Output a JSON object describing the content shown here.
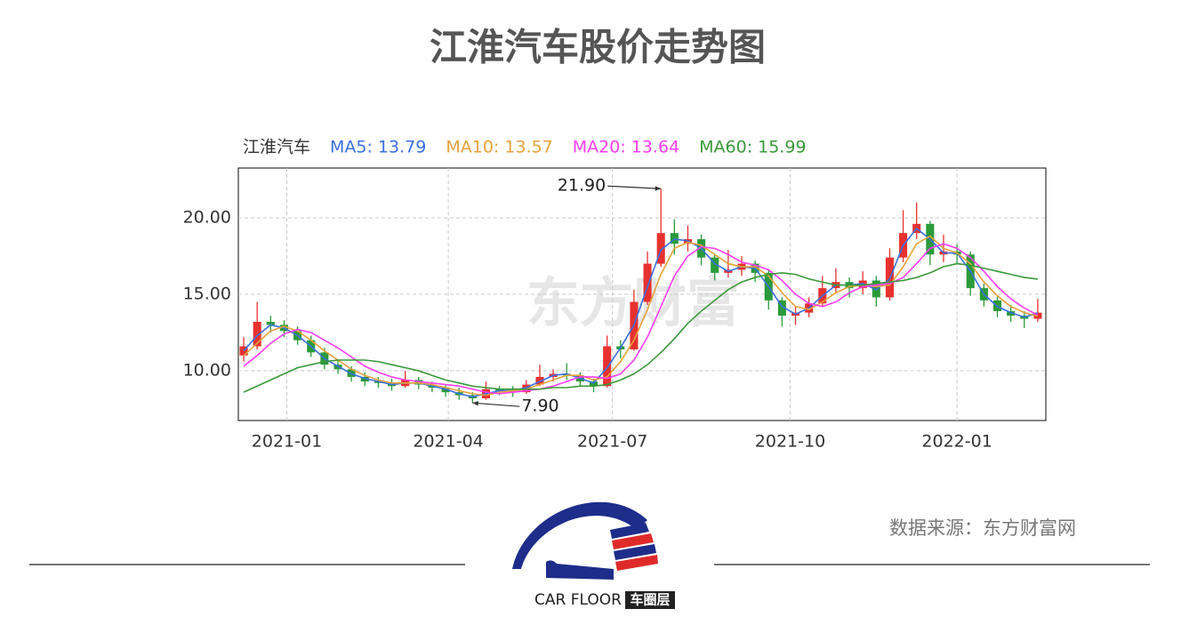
{
  "title": "江淮汽车股价走势图",
  "source": "数据来源：东方财富网",
  "logo": {
    "text": "CAR FLOOR",
    "cn": "车圈层"
  },
  "chart_data": {
    "type": "candlestick",
    "legend_title": "江淮汽车",
    "watermark": "东方财富",
    "xlim": [
      0,
      300
    ],
    "xticks": [
      {
        "value": 18,
        "label": "2021-01"
      },
      {
        "value": 78,
        "label": "2021-04"
      },
      {
        "value": 139,
        "label": "2021-07"
      },
      {
        "value": 205,
        "label": "2021-10"
      },
      {
        "value": 267,
        "label": "2022-01"
      }
    ],
    "ylim": [
      6.75,
      23.25
    ],
    "yticks": [
      {
        "value": 10,
        "label": "10.00"
      },
      {
        "value": 15,
        "label": "15.00"
      },
      {
        "value": 20,
        "label": "20.00"
      }
    ],
    "grid": true,
    "up_color": "#e8312f",
    "down_color": "#2a9a3a",
    "x": [
      2,
      7,
      12,
      17,
      22,
      27,
      32,
      37,
      42,
      47,
      52,
      57,
      62,
      67,
      72,
      77,
      82,
      87,
      92,
      97,
      102,
      107,
      112,
      117,
      122,
      127,
      132,
      137,
      142,
      147,
      152,
      157,
      162,
      167,
      172,
      177,
      182,
      187,
      192,
      197,
      202,
      207,
      212,
      217,
      222,
      227,
      232,
      237,
      242,
      247,
      252,
      257,
      262,
      267,
      272,
      277,
      282,
      287,
      292,
      297
    ],
    "open": [
      11.0,
      11.6,
      13.2,
      13.0,
      12.6,
      12.0,
      11.2,
      10.4,
      10.1,
      9.6,
      9.3,
      9.2,
      9.0,
      9.4,
      9.1,
      8.9,
      8.6,
      8.4,
      8.2,
      8.8,
      8.7,
      8.6,
      9.1,
      9.6,
      9.8,
      9.7,
      9.3,
      9.0,
      11.6,
      11.4,
      14.5,
      17.0,
      19.0,
      18.3,
      18.6,
      17.4,
      16.4,
      16.6,
      17.0,
      16.4,
      14.6,
      13.6,
      13.8,
      14.4,
      15.4,
      15.8,
      15.4,
      15.9,
      14.8,
      17.4,
      19.0,
      19.6,
      17.6,
      17.8,
      17.6,
      15.4,
      14.6,
      13.9,
      13.6,
      13.4
    ],
    "high": [
      12.2,
      14.5,
      13.6,
      13.3,
      12.9,
      12.3,
      11.5,
      10.7,
      10.3,
      9.9,
      9.6,
      9.5,
      10.0,
      9.6,
      9.3,
      9.1,
      8.9,
      8.6,
      9.3,
      9.0,
      9.0,
      9.4,
      10.4,
      10.1,
      10.5,
      9.9,
      9.5,
      12.3,
      12.0,
      15.3,
      17.8,
      21.9,
      19.9,
      19.5,
      18.9,
      17.6,
      17.9,
      17.5,
      17.2,
      16.6,
      14.8,
      14.2,
      14.8,
      16.2,
      16.7,
      16.1,
      16.5,
      16.2,
      18.0,
      20.5,
      21.0,
      19.8,
      18.9,
      18.3,
      17.8,
      15.7,
      14.9,
      14.3,
      13.9,
      14.7
    ],
    "low": [
      10.6,
      11.4,
      12.5,
      12.2,
      11.7,
      10.9,
      10.1,
      9.8,
      9.3,
      9.0,
      8.9,
      8.7,
      8.9,
      8.8,
      8.6,
      8.3,
      8.1,
      7.9,
      8.1,
      8.4,
      8.3,
      8.5,
      9.0,
      9.3,
      9.4,
      9.0,
      8.6,
      8.9,
      10.8,
      11.3,
      14.3,
      16.8,
      17.6,
      17.8,
      16.9,
      15.9,
      16.1,
      16.2,
      15.8,
      14.0,
      12.9,
      13.0,
      13.5,
      14.2,
      15.1,
      14.8,
      15.0,
      14.2,
      14.6,
      17.1,
      18.6,
      16.9,
      17.1,
      17.0,
      14.9,
      14.2,
      13.5,
      13.2,
      12.8,
      13.2
    ],
    "close": [
      11.6,
      13.2,
      13.0,
      12.6,
      12.0,
      11.2,
      10.4,
      10.1,
      9.6,
      9.3,
      9.2,
      9.0,
      9.4,
      9.1,
      8.9,
      8.6,
      8.4,
      8.2,
      8.8,
      8.7,
      8.6,
      9.1,
      9.6,
      9.8,
      9.7,
      9.3,
      9.0,
      11.6,
      11.4,
      14.5,
      17.0,
      19.0,
      18.3,
      18.6,
      17.4,
      16.4,
      16.6,
      17.0,
      16.4,
      14.6,
      13.6,
      13.8,
      14.4,
      15.4,
      15.8,
      15.4,
      15.9,
      14.8,
      17.4,
      19.0,
      19.6,
      17.6,
      17.8,
      17.6,
      15.4,
      14.6,
      13.9,
      13.6,
      13.4,
      13.8
    ],
    "series": [
      {
        "name": "MA5: 13.79",
        "color": "#3b6fe0",
        "values": [
          11.3,
          12.3,
          13.0,
          12.8,
          12.3,
          11.6,
          10.8,
          10.3,
          9.8,
          9.5,
          9.3,
          9.1,
          9.2,
          9.2,
          9.0,
          8.8,
          8.5,
          8.3,
          8.5,
          8.7,
          8.7,
          8.9,
          9.3,
          9.7,
          9.8,
          9.5,
          9.2,
          10.2,
          11.5,
          13.0,
          15.5,
          17.9,
          18.6,
          18.5,
          18.0,
          17.0,
          16.5,
          16.8,
          16.7,
          15.5,
          14.2,
          13.7,
          14.1,
          14.9,
          15.6,
          15.6,
          15.7,
          15.3,
          16.0,
          18.2,
          19.3,
          18.6,
          17.7,
          17.7,
          16.5,
          15.0,
          14.2,
          13.8,
          13.5,
          13.79
        ]
      },
      {
        "name": "MA10: 13.57",
        "color": "#e6a23c",
        "values": [
          11.0,
          11.8,
          12.6,
          12.9,
          12.6,
          12.0,
          11.3,
          10.7,
          10.1,
          9.7,
          9.4,
          9.2,
          9.2,
          9.2,
          9.1,
          8.9,
          8.7,
          8.5,
          8.4,
          8.6,
          8.7,
          8.8,
          9.1,
          9.4,
          9.7,
          9.7,
          9.4,
          9.6,
          10.6,
          12.0,
          14.0,
          16.3,
          18.0,
          18.4,
          18.2,
          17.6,
          17.0,
          16.8,
          16.8,
          16.2,
          15.1,
          14.2,
          14.0,
          14.5,
          15.1,
          15.5,
          15.6,
          15.5,
          15.6,
          16.8,
          18.3,
          18.8,
          18.0,
          17.7,
          17.0,
          15.8,
          14.9,
          14.2,
          13.8,
          13.57
        ]
      },
      {
        "name": "MA20: 13.64",
        "color": "#ff3df5",
        "values": [
          10.3,
          11.0,
          11.8,
          12.4,
          12.7,
          12.5,
          12.0,
          11.5,
          10.9,
          10.3,
          9.9,
          9.6,
          9.4,
          9.3,
          9.2,
          9.1,
          9.0,
          8.8,
          8.6,
          8.5,
          8.6,
          8.7,
          8.8,
          9.0,
          9.3,
          9.6,
          9.6,
          9.5,
          9.8,
          10.7,
          12.2,
          14.2,
          16.2,
          17.5,
          18.1,
          18.0,
          17.6,
          17.1,
          16.9,
          16.6,
          15.9,
          15.0,
          14.4,
          14.2,
          14.5,
          15.1,
          15.5,
          15.6,
          15.7,
          16.1,
          17.0,
          18.0,
          18.3,
          18.0,
          17.4,
          16.5,
          15.5,
          14.7,
          14.1,
          13.64
        ]
      },
      {
        "name": "MA60: 15.99",
        "color": "#3a9a3a",
        "values": [
          8.6,
          9.0,
          9.4,
          9.8,
          10.2,
          10.4,
          10.6,
          10.7,
          10.7,
          10.7,
          10.6,
          10.4,
          10.2,
          10.0,
          9.7,
          9.4,
          9.2,
          9.0,
          8.9,
          8.8,
          8.8,
          8.8,
          8.8,
          8.9,
          8.9,
          9.0,
          9.0,
          9.1,
          9.4,
          9.8,
          10.4,
          11.2,
          12.1,
          13.1,
          13.9,
          14.6,
          15.3,
          15.8,
          16.1,
          16.3,
          16.4,
          16.3,
          16.0,
          15.8,
          15.6,
          15.6,
          15.6,
          15.7,
          15.8,
          15.9,
          16.1,
          16.4,
          16.8,
          17.0,
          16.9,
          16.7,
          16.5,
          16.3,
          16.1,
          15.99
        ]
      }
    ],
    "annotations": [
      {
        "label": "21.90",
        "x": 157,
        "y": 21.9
      },
      {
        "label": "7.90",
        "x": 87,
        "y": 7.9
      }
    ]
  }
}
